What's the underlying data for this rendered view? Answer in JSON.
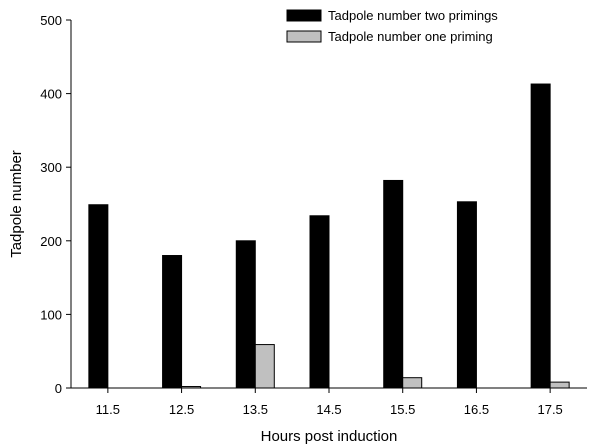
{
  "chart_data": {
    "type": "bar",
    "title": "",
    "xlabel": "Hours post induction",
    "ylabel": "Tadpole number",
    "ylim": [
      0,
      500
    ],
    "yticks": [
      0,
      100,
      200,
      300,
      400,
      500
    ],
    "categories": [
      "11.5",
      "12.5",
      "13.5",
      "14.5",
      "15.5",
      "16.5",
      "17.5"
    ],
    "series": [
      {
        "name": "Tadpole number two primings",
        "color": "#000000",
        "values": [
          249,
          180,
          200,
          234,
          282,
          253,
          413
        ]
      },
      {
        "name": "Tadpole number one priming",
        "color": "#c0c0c0",
        "values": [
          0,
          2,
          59,
          0,
          14,
          0,
          8
        ]
      }
    ],
    "legend_position": "top-right",
    "grid": false
  }
}
